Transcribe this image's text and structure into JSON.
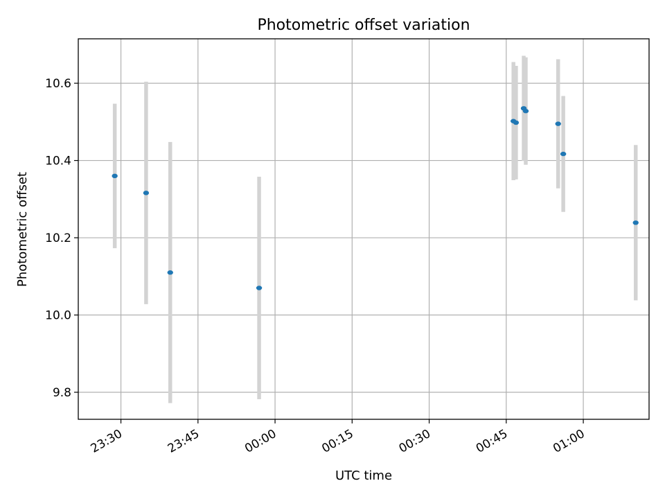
{
  "chart_data": {
    "type": "scatter",
    "title": "Photometric offset variation",
    "xlabel": "UTC time",
    "ylabel": "Photometric offset",
    "x_unit": "minutes after 23:00 UTC",
    "xlim": [
      21.7,
      132.8
    ],
    "ylim": [
      9.73,
      10.715
    ],
    "x_ticks": [
      {
        "value": 30,
        "label": "23:30"
      },
      {
        "value": 45,
        "label": "23:45"
      },
      {
        "value": 60,
        "label": "00:00"
      },
      {
        "value": 75,
        "label": "00:15"
      },
      {
        "value": 90,
        "label": "00:30"
      },
      {
        "value": 105,
        "label": "00:45"
      },
      {
        "value": 120,
        "label": "01:00"
      }
    ],
    "y_ticks": [
      {
        "value": 9.8,
        "label": "9.8"
      },
      {
        "value": 10.0,
        "label": "10.0"
      },
      {
        "value": 10.2,
        "label": "10.2"
      },
      {
        "value": 10.4,
        "label": "10.4"
      },
      {
        "value": 10.6,
        "label": "10.6"
      }
    ],
    "grid": true,
    "marker_color": "#1f77b4",
    "errorbar_color": "#d3d3d3",
    "points": [
      {
        "x": 28.8,
        "y": 10.36,
        "err": 0.187
      },
      {
        "x": 34.9,
        "y": 10.316,
        "err": 0.288
      },
      {
        "x": 39.6,
        "y": 10.11,
        "err": 0.338
      },
      {
        "x": 56.9,
        "y": 10.07,
        "err": 0.288
      },
      {
        "x": 106.4,
        "y": 10.502,
        "err": 0.153
      },
      {
        "x": 106.9,
        "y": 10.498,
        "err": 0.147
      },
      {
        "x": 108.4,
        "y": 10.535,
        "err": 0.136
      },
      {
        "x": 108.8,
        "y": 10.528,
        "err": 0.139
      },
      {
        "x": 115.1,
        "y": 10.495,
        "err": 0.167
      },
      {
        "x": 116.1,
        "y": 10.417,
        "err": 0.15
      },
      {
        "x": 130.2,
        "y": 10.239,
        "err": 0.201
      }
    ]
  }
}
